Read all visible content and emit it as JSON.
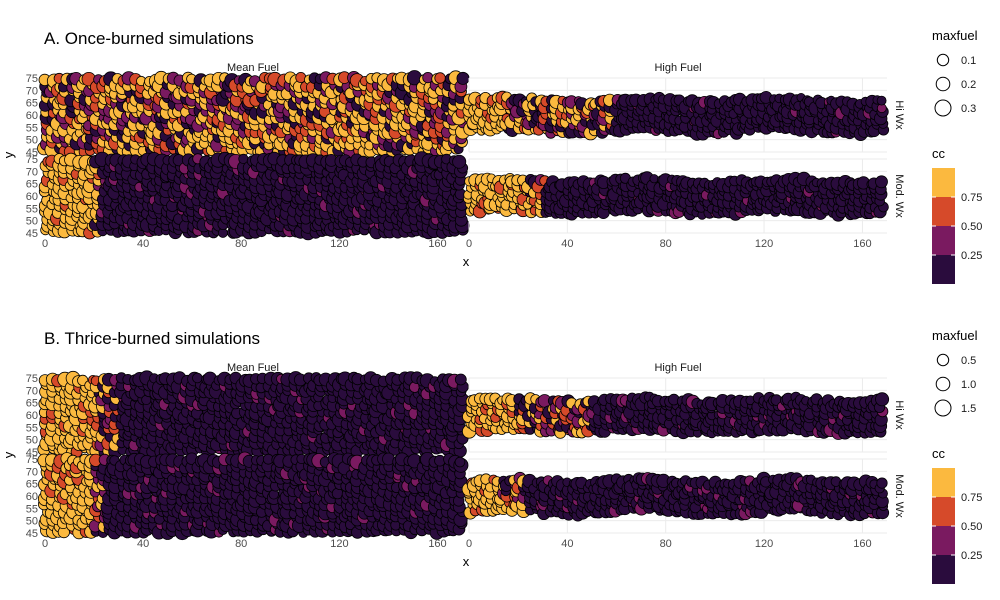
{
  "colors": {
    "background": "#ffffff",
    "grid": "#ebebeb",
    "cc_bins": [
      "#2a0c3d",
      "#7a1a60",
      "#d64a2a",
      "#fbb93f"
    ]
  },
  "chart_data": [
    {
      "type": "scatter",
      "title": "A. Once-burned simulations",
      "xlabel": "x",
      "ylabel": "y",
      "xlim": [
        0,
        170
      ],
      "ylim_mean_fuel": [
        45,
        75
      ],
      "x_ticks": [
        "0",
        "40",
        "80",
        "120",
        "160"
      ],
      "x_tick_values": [
        0,
        40,
        80,
        120,
        160
      ],
      "y_ticks": [
        "45",
        "50",
        "55",
        "60",
        "65",
        "70",
        "75"
      ],
      "y_tick_values": [
        45,
        50,
        55,
        60,
        65,
        70,
        75
      ],
      "columns": [
        "Mean Fuel",
        "High Fuel"
      ],
      "rows": [
        "Hi Wx",
        "Mod. Wx"
      ],
      "size_legend": {
        "title": "maxfuel",
        "labels": [
          "0.1",
          "0.2",
          "0.3"
        ],
        "values": [
          0.1,
          0.2,
          0.3
        ]
      },
      "color_legend": {
        "title": "cc",
        "labels": [
          "0.75",
          "0.50",
          "0.25"
        ],
        "breaks": [
          0.25,
          0.5,
          0.75
        ]
      },
      "panels": [
        {
          "column": "Mean Fuel",
          "row": "Hi Wx",
          "y_range": [
            45,
            75
          ],
          "front_x": 170,
          "mixed_to_x": 170,
          "cc_burned": 0.9
        },
        {
          "column": "High Fuel",
          "row": "Hi Wx",
          "y_range": [
            53,
            68
          ],
          "front_x": 15,
          "mixed_to_x": 58,
          "cc_burned": 0.9
        },
        {
          "column": "Mean Fuel",
          "row": "Mod. Wx",
          "y_range": [
            45,
            75
          ],
          "front_x": 20,
          "mixed_to_x": 22,
          "cc_burned": 0.9
        },
        {
          "column": "High Fuel",
          "row": "Mod. Wx",
          "y_range": [
            53,
            67
          ],
          "front_x": 24,
          "mixed_to_x": 31,
          "cc_burned": 0.9
        }
      ]
    },
    {
      "type": "scatter",
      "title": "B. Thrice-burned simulations",
      "xlabel": "x",
      "ylabel": "y",
      "xlim": [
        0,
        170
      ],
      "ylim_mean_fuel": [
        45,
        75
      ],
      "x_ticks": [
        "0",
        "40",
        "80",
        "120",
        "160"
      ],
      "x_tick_values": [
        0,
        40,
        80,
        120,
        160
      ],
      "y_ticks": [
        "45",
        "50",
        "55",
        "60",
        "65",
        "70",
        "75"
      ],
      "y_tick_values": [
        45,
        50,
        55,
        60,
        65,
        70,
        75
      ],
      "columns": [
        "Mean Fuel",
        "High Fuel"
      ],
      "rows": [
        "Hi Wx",
        "Mod. Wx"
      ],
      "size_legend": {
        "title": "maxfuel",
        "labels": [
          "0.5",
          "1.0",
          "1.5"
        ],
        "values": [
          0.5,
          1.0,
          1.5
        ]
      },
      "color_legend": {
        "title": "cc",
        "labels": [
          "0.75",
          "0.50",
          "0.25"
        ],
        "breaks": [
          0.25,
          0.5,
          0.75
        ]
      },
      "panels": [
        {
          "column": "Mean Fuel",
          "row": "Hi Wx",
          "y_range": [
            45,
            75
          ],
          "front_x": 22,
          "mixed_to_x": 30,
          "cc_burned": 0.9
        },
        {
          "column": "High Fuel",
          "row": "Hi Wx",
          "y_range": [
            53,
            68
          ],
          "front_x": 20,
          "mixed_to_x": 50,
          "cc_burned": 0.9
        },
        {
          "column": "Mean Fuel",
          "row": "Mod. Wx",
          "y_range": [
            45,
            75
          ],
          "front_x": 20,
          "mixed_to_x": 25,
          "cc_burned": 0.9
        },
        {
          "column": "High Fuel",
          "row": "Mod. Wx",
          "y_range": [
            53,
            67
          ],
          "front_x": 14,
          "mixed_to_x": 24,
          "cc_burned": 0.9
        }
      ]
    }
  ]
}
